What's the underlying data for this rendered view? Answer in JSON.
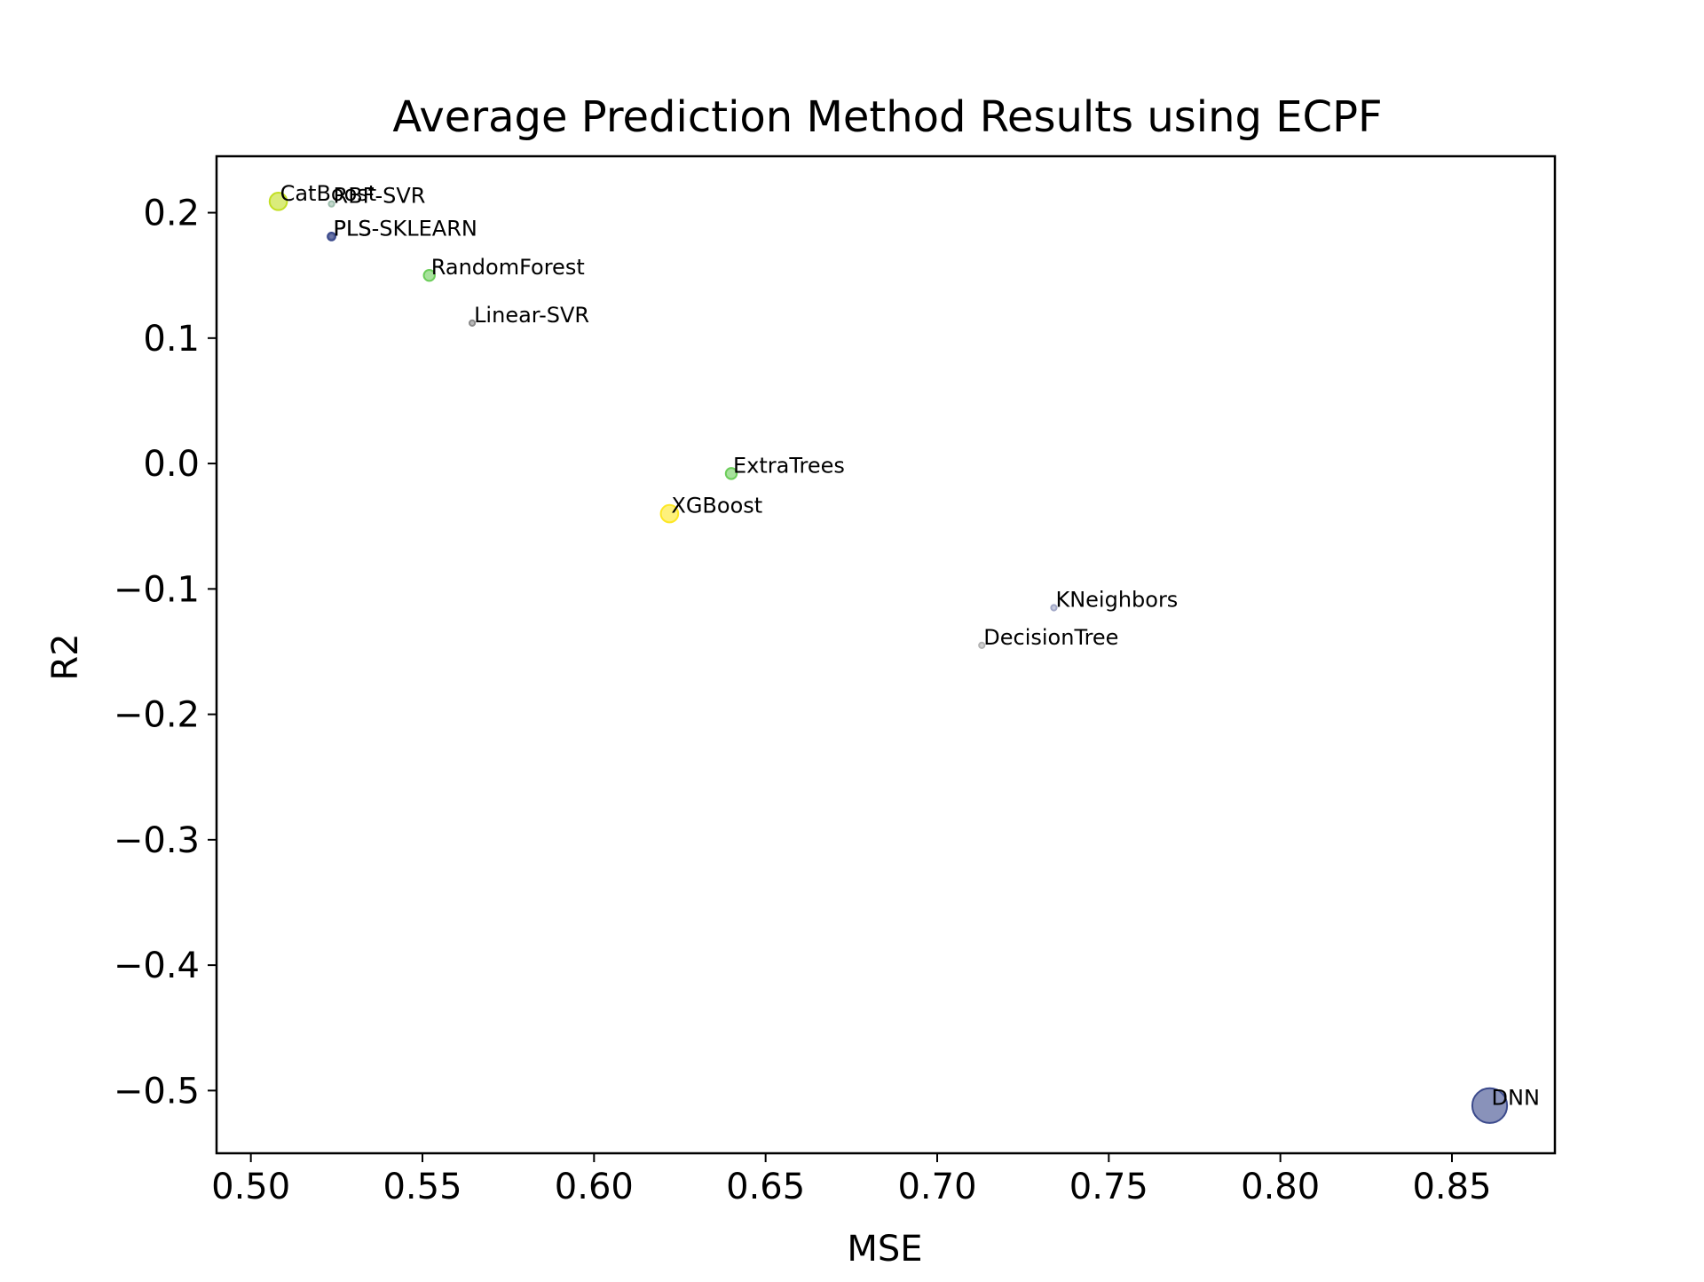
{
  "chart_data": {
    "type": "scatter",
    "title": "Average Prediction Method Results using ECPF",
    "xlabel": "MSE",
    "ylabel": "R2",
    "xlim": [
      0.49,
      0.88
    ],
    "ylim": [
      -0.55,
      0.245
    ],
    "xticks": [
      0.5,
      0.55,
      0.6,
      0.65,
      0.7,
      0.75,
      0.8,
      0.85
    ],
    "xtick_labels": [
      "0.50",
      "0.55",
      "0.60",
      "0.65",
      "0.70",
      "0.75",
      "0.80",
      "0.85"
    ],
    "yticks": [
      0.2,
      0.1,
      0.0,
      -0.1,
      -0.2,
      -0.3,
      -0.4,
      -0.5
    ],
    "ytick_labels": [
      "0.2",
      "0.1",
      "0.0",
      "−0.1",
      "−0.2",
      "−0.3",
      "−0.4",
      "−0.5"
    ],
    "grid": false,
    "legend": "none",
    "points": [
      {
        "label": "CatBoost",
        "x": 0.508,
        "y": 0.209,
        "relative_size": 10,
        "color": "#c2df23"
      },
      {
        "label": "RBF-SVR",
        "x": 0.5235,
        "y": 0.207,
        "relative_size": 1,
        "color": "#9fbfae"
      },
      {
        "label": "PLS-SKLEARN",
        "x": 0.5235,
        "y": 0.181,
        "relative_size": 1,
        "color": "#8a8fb0"
      },
      {
        "label": "PLS",
        "x": 0.5235,
        "y": 0.181,
        "relative_size": 2,
        "color": "#3b4a8c"
      },
      {
        "label": "RandomForest",
        "x": 0.552,
        "y": 0.15,
        "relative_size": 4,
        "color": "#6ccd5a"
      },
      {
        "label": "Linear-SVR",
        "x": 0.5645,
        "y": 0.112,
        "relative_size": 1,
        "color": "#8a8a8a"
      },
      {
        "label": "ExtraTrees",
        "x": 0.64,
        "y": -0.008,
        "relative_size": 4,
        "color": "#6ccd5a"
      },
      {
        "label": "XGBoost",
        "x": 0.622,
        "y": -0.04,
        "relative_size": 10,
        "color": "#fde725"
      },
      {
        "label": "KNeighbors",
        "x": 0.734,
        "y": -0.115,
        "relative_size": 1,
        "color": "#a0a6c6"
      },
      {
        "label": "DecisionTree",
        "x": 0.713,
        "y": -0.145,
        "relative_size": 1,
        "color": "#b3b3b3"
      },
      {
        "label": "DNN",
        "x": 0.861,
        "y": -0.512,
        "relative_size": 40,
        "color": "#3b4a8c"
      }
    ]
  }
}
